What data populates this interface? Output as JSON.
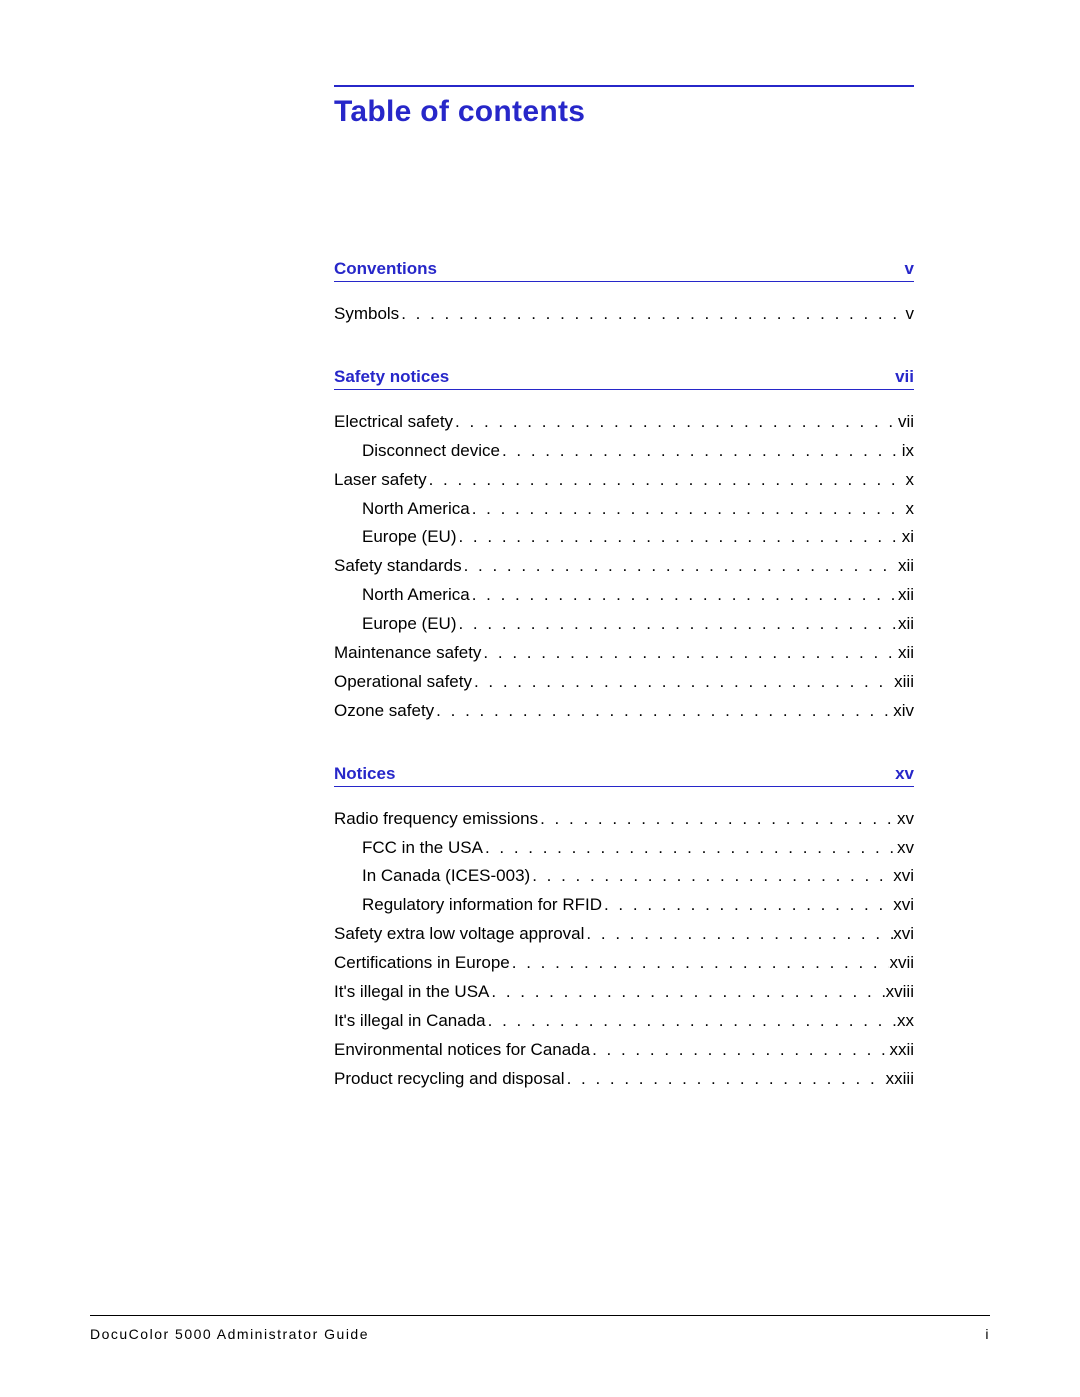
{
  "title": "Table of contents",
  "colors": {
    "heading": "#2727c9",
    "text": "#000000",
    "background": "#ffffff"
  },
  "sections": [
    {
      "title": "Conventions",
      "page": "v",
      "entries": [
        {
          "label": "Symbols",
          "page": "v",
          "level": 1
        }
      ]
    },
    {
      "title": "Safety notices",
      "page": "vii",
      "entries": [
        {
          "label": "Electrical safety",
          "page": "vii",
          "level": 1
        },
        {
          "label": "Disconnect device",
          "page": "ix",
          "level": 2
        },
        {
          "label": "Laser safety",
          "page": "x",
          "level": 1
        },
        {
          "label": "North America",
          "page": "x",
          "level": 2
        },
        {
          "label": "Europe (EU)",
          "page": "xi",
          "level": 2
        },
        {
          "label": "Safety standards",
          "page": "xii",
          "level": 1
        },
        {
          "label": "North America",
          "page": "xii",
          "level": 2
        },
        {
          "label": "Europe (EU)",
          "page": "xii",
          "level": 2
        },
        {
          "label": "Maintenance safety",
          "page": "xii",
          "level": 1
        },
        {
          "label": "Operational safety",
          "page": "xiii",
          "level": 1
        },
        {
          "label": "Ozone safety",
          "page": "xiv",
          "level": 1
        }
      ]
    },
    {
      "title": "Notices",
      "page": "xv",
      "entries": [
        {
          "label": "Radio frequency emissions",
          "page": "xv",
          "level": 1
        },
        {
          "label": "FCC in the USA",
          "page": "xv",
          "level": 2
        },
        {
          "label": "In Canada (ICES-003)",
          "page": "xvi",
          "level": 2
        },
        {
          "label": "Regulatory information for RFID",
          "page": "xvi",
          "level": 2
        },
        {
          "label": "Safety extra low voltage approval",
          "page": "xvi",
          "level": 1
        },
        {
          "label": "Certifications in Europe",
          "page": "xvii",
          "level": 1
        },
        {
          "label": "It's illegal in the USA",
          "page": "xviii",
          "level": 1
        },
        {
          "label": "It's illegal in Canada",
          "page": "xx",
          "level": 1
        },
        {
          "label": "Environmental notices for Canada",
          "page": "xxii",
          "level": 1
        },
        {
          "label": "Product recycling and disposal",
          "page": "xxiii",
          "level": 1
        }
      ]
    }
  ],
  "footer": {
    "left": "DocuColor 5000 Administrator Guide",
    "right": "i"
  }
}
